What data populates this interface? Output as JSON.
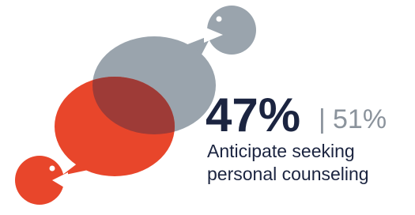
{
  "stat": {
    "primary": "47%",
    "separator": "|",
    "secondary": "51%"
  },
  "caption": {
    "line1": "Anticipate seeking",
    "line2": "personal counseling"
  }
}
